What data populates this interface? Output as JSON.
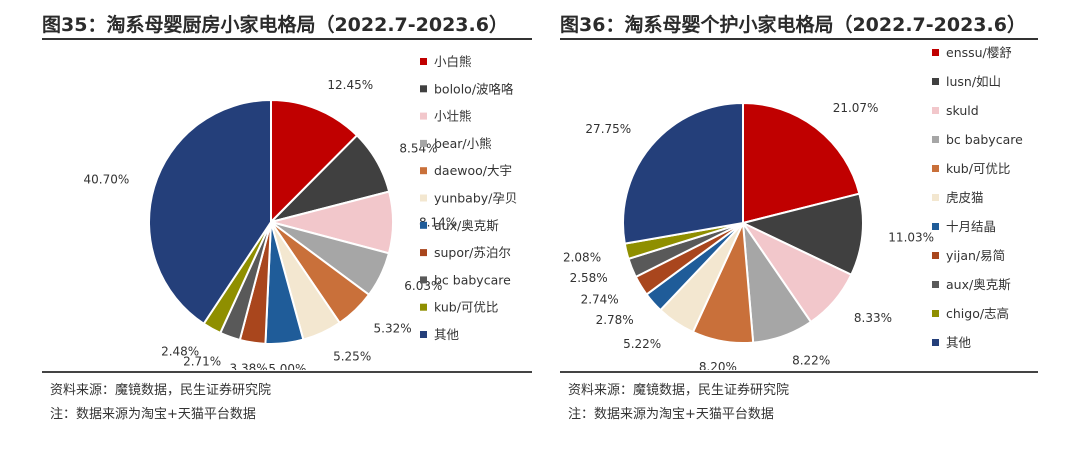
{
  "charts": [
    {
      "title": "图35：淘系母婴厨房小家电格局（2022.7-2023.6）",
      "source": "资料来源：魔镜数据，民生证券研究院",
      "note": "注：数据来源为淘宝+天猫平台数据",
      "chart_data": {
        "type": "pie",
        "labels": [
          "小白熊",
          "bololo/波咯咯",
          "小壮熊",
          "bear/小熊",
          "daewoo/大宇",
          "yunbaby/孕贝",
          "aux/奥克斯",
          "supor/苏泊尔",
          "bc babycare",
          "kub/可优比",
          "其他"
        ],
        "values": [
          12.45,
          8.54,
          8.14,
          6.03,
          5.32,
          5.25,
          5.0,
          3.38,
          2.71,
          2.48,
          40.7
        ],
        "value_labels": [
          "12.45%",
          "8.54%",
          "8.14%",
          "6.03%",
          "5.32%",
          "5.25%",
          "5.00%",
          "3.38%",
          "2.71%",
          "2.48%",
          "40.70%"
        ],
        "colors": [
          "#c00000",
          "#404040",
          "#f2c7cb",
          "#a6a6a6",
          "#c9703a",
          "#f3e7d0",
          "#1f5c99",
          "#a9461d",
          "#595959",
          "#8f8f00",
          "#243f7a"
        ],
        "legend_position": "right"
      }
    },
    {
      "title": "图36：淘系母婴个护小家电格局（2022.7-2023.6）",
      "source": "资料来源：魔镜数据，民生证券研究院",
      "note": "注：数据来源为淘宝+天猫平台数据",
      "chart_data": {
        "type": "pie",
        "labels": [
          "enssu/樱舒",
          "lusn/如山",
          "skuld",
          "bc babycare",
          "kub/可优比",
          "虎皮猫",
          "十月结晶",
          "yijan/易简",
          "aux/奥克斯",
          "chigo/志高",
          "其他"
        ],
        "values": [
          21.07,
          11.03,
          8.33,
          8.22,
          8.2,
          5.22,
          2.78,
          2.74,
          2.58,
          2.08,
          27.75
        ],
        "value_labels": [
          "21.07%",
          "11.03%",
          "8.33%",
          "8.22%",
          "8.20%",
          "5.22%",
          "2.78%",
          "2.74%",
          "2.58%",
          "2.08%",
          "27.75%"
        ],
        "colors": [
          "#c00000",
          "#404040",
          "#f2c7cb",
          "#a6a6a6",
          "#c9703a",
          "#f3e7d0",
          "#1f5c99",
          "#a9461d",
          "#595959",
          "#8f8f00",
          "#243f7a"
        ],
        "legend_position": "right"
      }
    }
  ]
}
